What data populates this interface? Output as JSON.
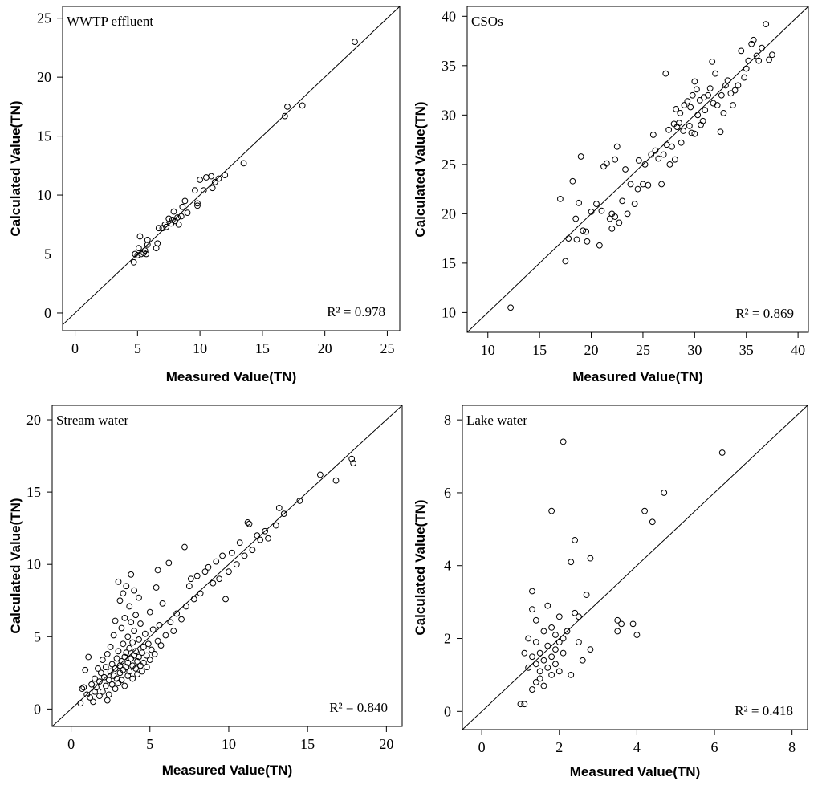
{
  "chart_data": [
    {
      "type": "scatter",
      "title": "WWTP effluent",
      "xlabel": "Measured Value(TN)",
      "ylabel": "Calculated Value(TN)",
      "xlim": [
        -1,
        26
      ],
      "ylim": [
        -1.5,
        26
      ],
      "xticks": [
        "0",
        "5",
        "10",
        "15",
        "20",
        "25"
      ],
      "yticks": [
        "0",
        "5",
        "10",
        "15",
        "20",
        "25"
      ],
      "xtick_values": [
        0,
        5,
        10,
        15,
        20,
        25
      ],
      "ytick_values": [
        0,
        5,
        10,
        15,
        20,
        25
      ],
      "r2_label": "R² = 0.978",
      "fit_line": "y = x",
      "points": [
        [
          4.7,
          4.3
        ],
        [
          4.8,
          5.0
        ],
        [
          5.0,
          4.9
        ],
        [
          5.1,
          5.5
        ],
        [
          5.2,
          6.5
        ],
        [
          5.3,
          5.0
        ],
        [
          5.5,
          5.1
        ],
        [
          5.6,
          5.3
        ],
        [
          5.7,
          5.0
        ],
        [
          5.8,
          5.8
        ],
        [
          5.8,
          6.2
        ],
        [
          6.5,
          5.5
        ],
        [
          6.6,
          5.9
        ],
        [
          6.7,
          7.2
        ],
        [
          7.0,
          7.2
        ],
        [
          7.2,
          7.5
        ],
        [
          7.3,
          7.3
        ],
        [
          7.5,
          8.0
        ],
        [
          7.7,
          7.6
        ],
        [
          7.8,
          7.9
        ],
        [
          7.9,
          8.6
        ],
        [
          8.0,
          7.8
        ],
        [
          8.2,
          8.1
        ],
        [
          8.3,
          7.5
        ],
        [
          8.5,
          8.2
        ],
        [
          8.6,
          9.0
        ],
        [
          8.8,
          9.5
        ],
        [
          9.0,
          8.5
        ],
        [
          9.6,
          10.4
        ],
        [
          9.8,
          9.3
        ],
        [
          9.8,
          9.1
        ],
        [
          10.0,
          11.3
        ],
        [
          10.3,
          10.4
        ],
        [
          10.5,
          11.5
        ],
        [
          10.9,
          11.6
        ],
        [
          11.0,
          10.6
        ],
        [
          11.2,
          11.1
        ],
        [
          11.5,
          11.4
        ],
        [
          12.0,
          11.7
        ],
        [
          13.5,
          12.7
        ],
        [
          16.8,
          16.7
        ],
        [
          17.0,
          17.5
        ],
        [
          18.2,
          17.6
        ],
        [
          22.4,
          23.0
        ]
      ]
    },
    {
      "type": "scatter",
      "title": "CSOs",
      "xlabel": "Measured Value(TN)",
      "ylabel": "Calculated Value(TN)",
      "xlim": [
        8,
        41
      ],
      "ylim": [
        8,
        41
      ],
      "xticks": [
        "10",
        "15",
        "20",
        "25",
        "30",
        "35",
        "40"
      ],
      "yticks": [
        "10",
        "15",
        "20",
        "25",
        "30",
        "35",
        "40"
      ],
      "xtick_values": [
        10,
        15,
        20,
        25,
        30,
        35,
        40
      ],
      "ytick_values": [
        10,
        15,
        20,
        25,
        30,
        35,
        40
      ],
      "r2_label": "R² = 0.869",
      "fit_line": "y = x",
      "points": [
        [
          12.2,
          10.5
        ],
        [
          17.0,
          21.5
        ],
        [
          17.5,
          15.2
        ],
        [
          17.8,
          17.5
        ],
        [
          18.2,
          23.3
        ],
        [
          18.5,
          19.5
        ],
        [
          18.6,
          17.4
        ],
        [
          18.8,
          21.1
        ],
        [
          19.0,
          25.8
        ],
        [
          19.2,
          18.3
        ],
        [
          19.5,
          18.2
        ],
        [
          19.6,
          17.2
        ],
        [
          20.0,
          20.2
        ],
        [
          20.5,
          21.0
        ],
        [
          20.8,
          16.8
        ],
        [
          21.0,
          20.3
        ],
        [
          21.2,
          24.8
        ],
        [
          21.5,
          25.1
        ],
        [
          21.8,
          19.5
        ],
        [
          22.0,
          20.0
        ],
        [
          22.0,
          18.5
        ],
        [
          22.3,
          19.7
        ],
        [
          22.3,
          25.5
        ],
        [
          22.5,
          26.8
        ],
        [
          22.7,
          19.1
        ],
        [
          23.0,
          21.3
        ],
        [
          23.3,
          24.5
        ],
        [
          23.5,
          20.0
        ],
        [
          23.8,
          23.0
        ],
        [
          24.2,
          21.0
        ],
        [
          24.5,
          22.5
        ],
        [
          24.6,
          25.4
        ],
        [
          25.0,
          23.0
        ],
        [
          25.2,
          25.0
        ],
        [
          25.5,
          22.9
        ],
        [
          25.8,
          26.0
        ],
        [
          26.0,
          28.0
        ],
        [
          26.2,
          26.4
        ],
        [
          26.5,
          25.6
        ],
        [
          26.8,
          23.0
        ],
        [
          27.0,
          26.0
        ],
        [
          27.2,
          34.2
        ],
        [
          27.3,
          27.0
        ],
        [
          27.5,
          28.5
        ],
        [
          27.6,
          25.0
        ],
        [
          27.8,
          26.8
        ],
        [
          28.0,
          29.1
        ],
        [
          28.1,
          25.5
        ],
        [
          28.2,
          30.6
        ],
        [
          28.3,
          28.8
        ],
        [
          28.5,
          29.2
        ],
        [
          28.6,
          30.2
        ],
        [
          28.7,
          27.2
        ],
        [
          28.9,
          28.4
        ],
        [
          29.0,
          31.0
        ],
        [
          29.3,
          31.4
        ],
        [
          29.5,
          28.9
        ],
        [
          29.6,
          30.8
        ],
        [
          29.7,
          28.2
        ],
        [
          29.8,
          32.0
        ],
        [
          30.0,
          33.4
        ],
        [
          30.0,
          28.1
        ],
        [
          30.2,
          32.6
        ],
        [
          30.3,
          30.0
        ],
        [
          30.5,
          31.5
        ],
        [
          30.6,
          29.0
        ],
        [
          30.8,
          29.4
        ],
        [
          30.9,
          31.8
        ],
        [
          31.0,
          30.5
        ],
        [
          31.3,
          32.0
        ],
        [
          31.5,
          32.7
        ],
        [
          31.7,
          35.4
        ],
        [
          31.8,
          31.2
        ],
        [
          32.0,
          34.2
        ],
        [
          32.2,
          31.0
        ],
        [
          32.5,
          28.3
        ],
        [
          32.6,
          32.0
        ],
        [
          32.8,
          30.2
        ],
        [
          33.0,
          33.0
        ],
        [
          33.2,
          33.5
        ],
        [
          33.5,
          32.2
        ],
        [
          33.7,
          31.0
        ],
        [
          33.9,
          32.5
        ],
        [
          34.2,
          33.0
        ],
        [
          34.5,
          36.5
        ],
        [
          34.8,
          33.8
        ],
        [
          35.0,
          34.7
        ],
        [
          35.2,
          35.5
        ],
        [
          35.5,
          37.2
        ],
        [
          35.7,
          37.6
        ],
        [
          36.0,
          36.0
        ],
        [
          36.2,
          35.5
        ],
        [
          36.5,
          36.8
        ],
        [
          36.9,
          39.2
        ],
        [
          37.2,
          35.6
        ],
        [
          37.5,
          36.1
        ]
      ]
    },
    {
      "type": "scatter",
      "title": "Stream water",
      "xlabel": "Measured Value(TN)",
      "ylabel": "Calculated Value(TN)",
      "xlim": [
        -1.2,
        21
      ],
      "ylim": [
        -1.2,
        21
      ],
      "xticks": [
        "0",
        "5",
        "10",
        "15",
        "20"
      ],
      "yticks": [
        "0",
        "5",
        "10",
        "15",
        "20"
      ],
      "xtick_values": [
        0,
        5,
        10,
        15,
        20
      ],
      "ytick_values": [
        0,
        5,
        10,
        15,
        20
      ],
      "r2_label": "R² = 0.840",
      "fit_line": "y = x",
      "points": [
        [
          0.6,
          0.4
        ],
        [
          0.7,
          1.4
        ],
        [
          0.8,
          1.5
        ],
        [
          0.9,
          2.7
        ],
        [
          1.0,
          1.0
        ],
        [
          1.1,
          3.6
        ],
        [
          1.2,
          0.8
        ],
        [
          1.3,
          1.7
        ],
        [
          1.4,
          0.5
        ],
        [
          1.5,
          1.2
        ],
        [
          1.5,
          2.1
        ],
        [
          1.6,
          1.5
        ],
        [
          1.7,
          2.8
        ],
        [
          1.8,
          0.9
        ],
        [
          1.8,
          1.9
        ],
        [
          1.9,
          2.5
        ],
        [
          2.0,
          1.2
        ],
        [
          2.0,
          3.4
        ],
        [
          2.1,
          2.2
        ],
        [
          2.2,
          1.6
        ],
        [
          2.2,
          2.9
        ],
        [
          2.3,
          0.6
        ],
        [
          2.3,
          3.8
        ],
        [
          2.4,
          2.0
        ],
        [
          2.4,
          1.0
        ],
        [
          2.5,
          2.6
        ],
        [
          2.5,
          4.3
        ],
        [
          2.6,
          1.7
        ],
        [
          2.6,
          3.1
        ],
        [
          2.7,
          2.3
        ],
        [
          2.7,
          5.1
        ],
        [
          2.8,
          1.4
        ],
        [
          2.8,
          2.8
        ],
        [
          2.8,
          6.1
        ],
        [
          2.9,
          3.5
        ],
        [
          2.9,
          2.1
        ],
        [
          3.0,
          8.8
        ],
        [
          3.0,
          1.8
        ],
        [
          3.0,
          4.0
        ],
        [
          3.1,
          2.5
        ],
        [
          3.1,
          3.0
        ],
        [
          3.1,
          7.5
        ],
        [
          3.2,
          2.0
        ],
        [
          3.2,
          5.6
        ],
        [
          3.2,
          3.3
        ],
        [
          3.3,
          2.7
        ],
        [
          3.3,
          8.0
        ],
        [
          3.3,
          4.5
        ],
        [
          3.4,
          3.6
        ],
        [
          3.4,
          1.6
        ],
        [
          3.4,
          6.3
        ],
        [
          3.5,
          2.9
        ],
        [
          3.5,
          3.9
        ],
        [
          3.5,
          8.5
        ],
        [
          3.6,
          2.3
        ],
        [
          3.6,
          5.0
        ],
        [
          3.6,
          3.2
        ],
        [
          3.7,
          4.2
        ],
        [
          3.7,
          7.1
        ],
        [
          3.7,
          2.6
        ],
        [
          3.8,
          3.5
        ],
        [
          3.8,
          6.0
        ],
        [
          3.8,
          9.3
        ],
        [
          3.9,
          3.0
        ],
        [
          3.9,
          4.6
        ],
        [
          3.9,
          2.1
        ],
        [
          4.0,
          3.7
        ],
        [
          4.0,
          5.4
        ],
        [
          4.0,
          8.2
        ],
        [
          4.1,
          2.8
        ],
        [
          4.1,
          4.0
        ],
        [
          4.1,
          6.5
        ],
        [
          4.2,
          3.3
        ],
        [
          4.2,
          2.4
        ],
        [
          4.3,
          4.8
        ],
        [
          4.3,
          3.6
        ],
        [
          4.3,
          7.7
        ],
        [
          4.4,
          3.0
        ],
        [
          4.4,
          5.9
        ],
        [
          4.5,
          3.9
        ],
        [
          4.5,
          2.6
        ],
        [
          4.6,
          4.3
        ],
        [
          4.6,
          3.2
        ],
        [
          4.7,
          5.2
        ],
        [
          4.8,
          3.7
        ],
        [
          4.8,
          2.9
        ],
        [
          4.9,
          4.5
        ],
        [
          5.0,
          3.4
        ],
        [
          5.0,
          6.7
        ],
        [
          5.1,
          4.1
        ],
        [
          5.2,
          5.5
        ],
        [
          5.3,
          3.8
        ],
        [
          5.4,
          8.4
        ],
        [
          5.5,
          4.7
        ],
        [
          5.5,
          9.6
        ],
        [
          5.6,
          5.8
        ],
        [
          5.7,
          4.4
        ],
        [
          5.8,
          7.3
        ],
        [
          6.0,
          5.1
        ],
        [
          6.2,
          10.1
        ],
        [
          6.3,
          6.0
        ],
        [
          6.5,
          5.4
        ],
        [
          6.7,
          6.6
        ],
        [
          7.0,
          6.2
        ],
        [
          7.2,
          11.2
        ],
        [
          7.3,
          7.1
        ],
        [
          7.5,
          8.5
        ],
        [
          7.6,
          9.0
        ],
        [
          7.8,
          7.6
        ],
        [
          8.0,
          9.2
        ],
        [
          8.2,
          8.0
        ],
        [
          8.5,
          9.5
        ],
        [
          8.7,
          9.8
        ],
        [
          9.0,
          8.7
        ],
        [
          9.2,
          10.2
        ],
        [
          9.4,
          9.0
        ],
        [
          9.6,
          10.6
        ],
        [
          9.8,
          7.6
        ],
        [
          10.0,
          9.5
        ],
        [
          10.2,
          10.8
        ],
        [
          10.5,
          10.0
        ],
        [
          10.7,
          11.5
        ],
        [
          11.0,
          10.6
        ],
        [
          11.2,
          12.9
        ],
        [
          11.3,
          12.8
        ],
        [
          11.5,
          11.0
        ],
        [
          11.8,
          12.0
        ],
        [
          12.0,
          11.7
        ],
        [
          12.3,
          12.3
        ],
        [
          12.5,
          11.8
        ],
        [
          13.0,
          12.7
        ],
        [
          13.2,
          13.9
        ],
        [
          13.5,
          13.5
        ],
        [
          14.5,
          14.4
        ],
        [
          15.8,
          16.2
        ],
        [
          16.8,
          15.8
        ],
        [
          17.8,
          17.3
        ],
        [
          17.9,
          17.0
        ]
      ]
    },
    {
      "type": "scatter",
      "title": "Lake water",
      "xlabel": "Measured Value(TN)",
      "ylabel": "Calculated Value(TN)",
      "xlim": [
        -0.5,
        8.4
      ],
      "ylim": [
        -0.5,
        8.4
      ],
      "xticks": [
        "0",
        "2",
        "4",
        "6",
        "8"
      ],
      "yticks": [
        "0",
        "2",
        "4",
        "6",
        "8"
      ],
      "xtick_values": [
        0,
        2,
        4,
        6,
        8
      ],
      "ytick_values": [
        0,
        2,
        4,
        6,
        8
      ],
      "r2_label": "R² = 0.418",
      "fit_line": "y = x",
      "points": [
        [
          1.0,
          0.2
        ],
        [
          1.1,
          0.2
        ],
        [
          1.1,
          1.6
        ],
        [
          1.2,
          1.2
        ],
        [
          1.2,
          2.0
        ],
        [
          1.3,
          0.6
        ],
        [
          1.3,
          1.5
        ],
        [
          1.3,
          2.8
        ],
        [
          1.3,
          3.3
        ],
        [
          1.4,
          0.8
        ],
        [
          1.4,
          1.3
        ],
        [
          1.4,
          1.9
        ],
        [
          1.4,
          2.5
        ],
        [
          1.5,
          0.9
        ],
        [
          1.5,
          1.6
        ],
        [
          1.5,
          1.1
        ],
        [
          1.6,
          1.4
        ],
        [
          1.6,
          2.2
        ],
        [
          1.6,
          0.7
        ],
        [
          1.7,
          1.8
        ],
        [
          1.7,
          1.2
        ],
        [
          1.7,
          2.9
        ],
        [
          1.8,
          1.5
        ],
        [
          1.8,
          1.0
        ],
        [
          1.8,
          2.3
        ],
        [
          1.8,
          5.5
        ],
        [
          1.9,
          1.7
        ],
        [
          1.9,
          2.1
        ],
        [
          1.9,
          1.3
        ],
        [
          2.0,
          1.9
        ],
        [
          2.0,
          2.6
        ],
        [
          2.0,
          1.1
        ],
        [
          2.1,
          7.4
        ],
        [
          2.1,
          2.0
        ],
        [
          2.1,
          1.6
        ],
        [
          2.2,
          2.2
        ],
        [
          2.3,
          4.1
        ],
        [
          2.3,
          1.0
        ],
        [
          2.4,
          4.7
        ],
        [
          2.4,
          2.7
        ],
        [
          2.5,
          2.6
        ],
        [
          2.5,
          1.9
        ],
        [
          2.6,
          1.4
        ],
        [
          2.7,
          3.2
        ],
        [
          2.8,
          4.2
        ],
        [
          2.8,
          1.7
        ],
        [
          3.5,
          2.5
        ],
        [
          3.5,
          2.2
        ],
        [
          3.6,
          2.4
        ],
        [
          3.9,
          2.4
        ],
        [
          4.0,
          2.1
        ],
        [
          4.2,
          5.5
        ],
        [
          4.4,
          5.2
        ],
        [
          4.7,
          6.0
        ],
        [
          6.2,
          7.1
        ]
      ]
    }
  ]
}
